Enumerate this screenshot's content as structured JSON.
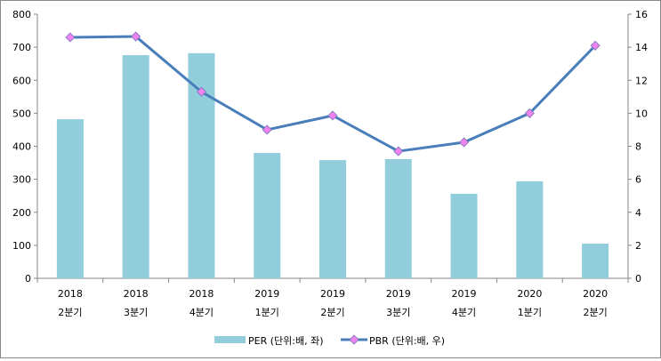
{
  "chart_data": {
    "type": "bar+line",
    "categories": [
      [
        "2018",
        "2분기"
      ],
      [
        "2018",
        "3분기"
      ],
      [
        "2018",
        "4분기"
      ],
      [
        "2019",
        "1분기"
      ],
      [
        "2019",
        "2분기"
      ],
      [
        "2019",
        "3분기"
      ],
      [
        "2019",
        "4분기"
      ],
      [
        "2020",
        "1분기"
      ],
      [
        "2020",
        "2분기"
      ]
    ],
    "series": [
      {
        "name": "PER (단위:배, 좌)",
        "type": "bar",
        "axis": "left",
        "color": "#92CDDC",
        "values": [
          482,
          676,
          682,
          380,
          358,
          361,
          256,
          294,
          105
        ]
      },
      {
        "name": "PBR (단위:배, 우)",
        "type": "line",
        "axis": "right",
        "color": "#4A7EBB",
        "marker_color": "#EE82EE",
        "values": [
          14.6,
          14.65,
          11.3,
          9.0,
          9.86,
          7.7,
          8.24,
          10.0,
          14.1
        ]
      }
    ],
    "left_axis": {
      "ylim": [
        0,
        800
      ],
      "ticks": [
        "0",
        "100",
        "200",
        "300",
        "400",
        "500",
        "600",
        "700",
        "800"
      ]
    },
    "right_axis": {
      "ylim": [
        0,
        16
      ],
      "ticks": [
        "0",
        "2",
        "4",
        "6",
        "8",
        "10",
        "12",
        "14",
        "16"
      ]
    },
    "grid": false,
    "legend": "bottom"
  }
}
